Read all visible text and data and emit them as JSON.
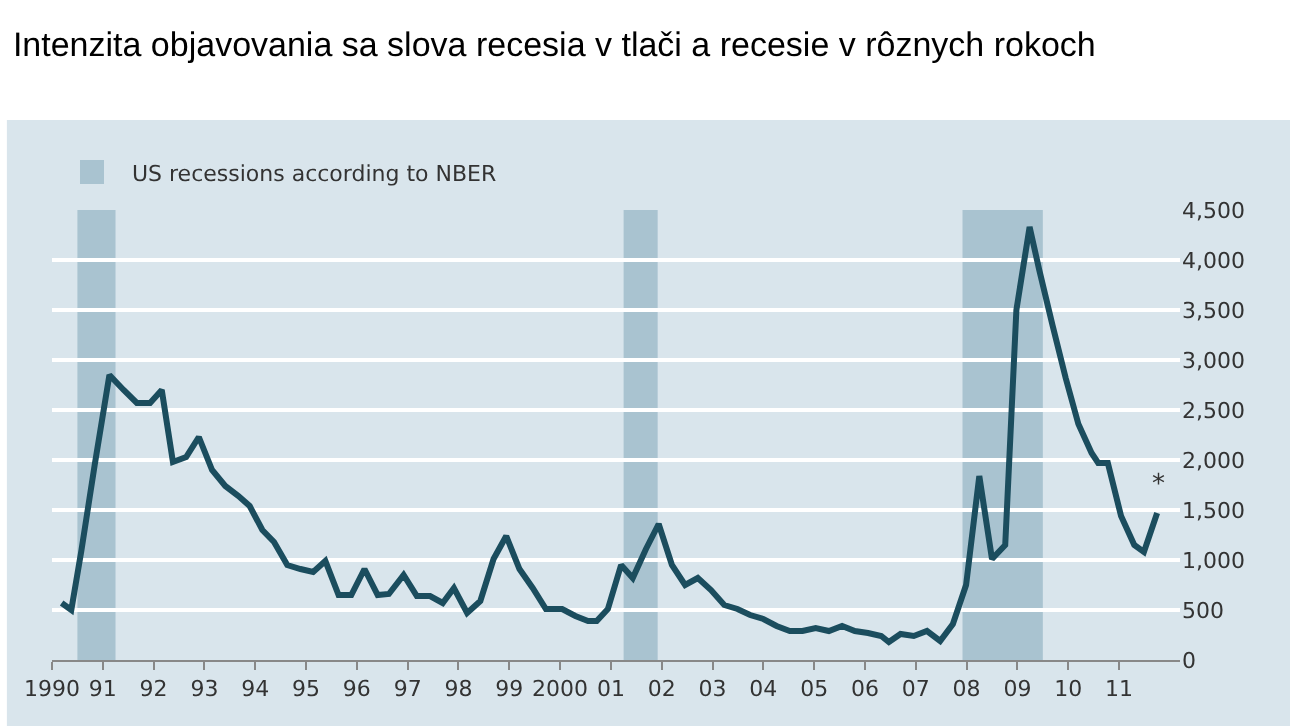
{
  "chart_data": {
    "type": "line",
    "title": "Intenzita objavovania sa slova recesia v tlači a recesie v rôznych rokoch",
    "x": [
      1990.19,
      1990.38,
      1990.58,
      1990.84,
      1991.13,
      1991.41,
      1991.67,
      1991.93,
      1992.16,
      1992.38,
      1992.64,
      1992.89,
      1993.15,
      1993.41,
      1993.67,
      1993.89,
      1994.14,
      1994.37,
      1994.63,
      1994.89,
      1995.14,
      1995.38,
      1995.64,
      1995.89,
      1996.15,
      1996.41,
      1996.63,
      1996.92,
      1997.18,
      1997.44,
      1997.69,
      1997.91,
      1998.17,
      1998.43,
      1998.69,
      1998.94,
      1999.2,
      1999.46,
      1999.72,
      2000.04,
      2000.3,
      2000.55,
      2000.72,
      2000.94,
      2001.2,
      2001.43,
      2001.69,
      2001.94,
      2002.2,
      2002.46,
      2002.71,
      2002.97,
      2003.23,
      2003.49,
      2003.74,
      2004.0,
      2004.26,
      2004.52,
      2004.77,
      2005.03,
      2005.29,
      2005.55,
      2005.8,
      2006.06,
      2006.32,
      2006.47,
      2006.7,
      2006.96,
      2007.22,
      2007.48,
      2007.73,
      2007.99,
      2008.25,
      2008.5,
      2008.76,
      2008.98,
      2009.24,
      2009.43,
      2009.69,
      2009.95,
      2010.2,
      2010.46,
      2010.59,
      2010.78,
      2011.04,
      2011.3,
      2011.49,
      2011.75
    ],
    "series": [
      {
        "color": "#1b4d5e",
        "values": [
          570,
          500,
          1100,
          1950,
          2850,
          2700,
          2570,
          2570,
          2700,
          1980,
          2030,
          2230,
          1900,
          1740,
          1640,
          1540,
          1300,
          1180,
          950,
          910,
          880,
          990,
          650,
          650,
          910,
          650,
          660,
          850,
          640,
          640,
          570,
          720,
          470,
          590,
          1010,
          1240,
          910,
          720,
          510,
          510,
          440,
          390,
          390,
          510,
          950,
          820,
          1110,
          1360,
          950,
          750,
          820,
          700,
          550,
          510,
          450,
          410,
          340,
          290,
          290,
          320,
          290,
          340,
          290,
          270,
          240,
          180,
          260,
          240,
          290,
          190,
          360,
          750,
          1840,
          1010,
          1150,
          3500,
          4330,
          3900,
          3350,
          2820,
          2360,
          2070,
          1970,
          1970,
          1440,
          1150,
          1080,
          1470
        ]
      }
    ],
    "xlim": [
      1990.0,
      2012.2
    ],
    "xticks": [
      1990,
      {
        "value": 1991,
        "label": "91"
      },
      {
        "value": 1992,
        "label": "92"
      },
      {
        "value": 1993,
        "label": "93"
      },
      {
        "value": 1994,
        "label": "94"
      },
      {
        "value": 1995,
        "label": "95"
      },
      {
        "value": 1996,
        "label": "96"
      },
      {
        "value": 1997,
        "label": "97"
      },
      {
        "value": 1998,
        "label": "98"
      },
      {
        "value": 1999,
        "label": "99"
      },
      2000,
      {
        "value": 2001,
        "label": "01"
      },
      {
        "value": 2002,
        "label": "02"
      },
      {
        "value": 2003,
        "label": "03"
      },
      {
        "value": 2004,
        "label": "04"
      },
      {
        "value": 2005,
        "label": "05"
      },
      {
        "value": 2006,
        "label": "06"
      },
      {
        "value": 2007,
        "label": "07"
      },
      {
        "value": 2008,
        "label": "08"
      },
      {
        "value": 2009,
        "label": "09"
      },
      {
        "value": 2010,
        "label": "10"
      },
      {
        "value": 2011,
        "label": "11"
      }
    ],
    "ylim": [
      0,
      4500
    ],
    "yticks": [
      0,
      500,
      {
        "value": 1000,
        "label": "1,000"
      },
      {
        "value": 1500,
        "label": "1,500"
      },
      {
        "value": 2000,
        "label": "2,000"
      },
      {
        "value": 2500,
        "label": "2,500"
      },
      {
        "value": 3000,
        "label": "3,000"
      },
      {
        "value": 3500,
        "label": "3,500"
      },
      {
        "value": 4000,
        "label": "4,000"
      },
      {
        "value": 4500,
        "label": "4,500"
      }
    ],
    "bands": [
      {
        "axis": "x",
        "from": 1990.5,
        "to": 1991.25,
        "label": "US recessions according to NBER",
        "color": "#a9c3d0"
      },
      {
        "axis": "x",
        "from": 2001.25,
        "to": 2001.92,
        "color": "#a9c3d0"
      },
      {
        "axis": "x",
        "from": 2007.92,
        "to": 2009.5,
        "color": "#a9c3d0"
      }
    ],
    "annotations": [
      {
        "text": "*",
        "x": 2011.75,
        "y": 1470
      }
    ],
    "grid": "y",
    "legend": "top left",
    "marker": "none",
    "line_style": "solid"
  }
}
